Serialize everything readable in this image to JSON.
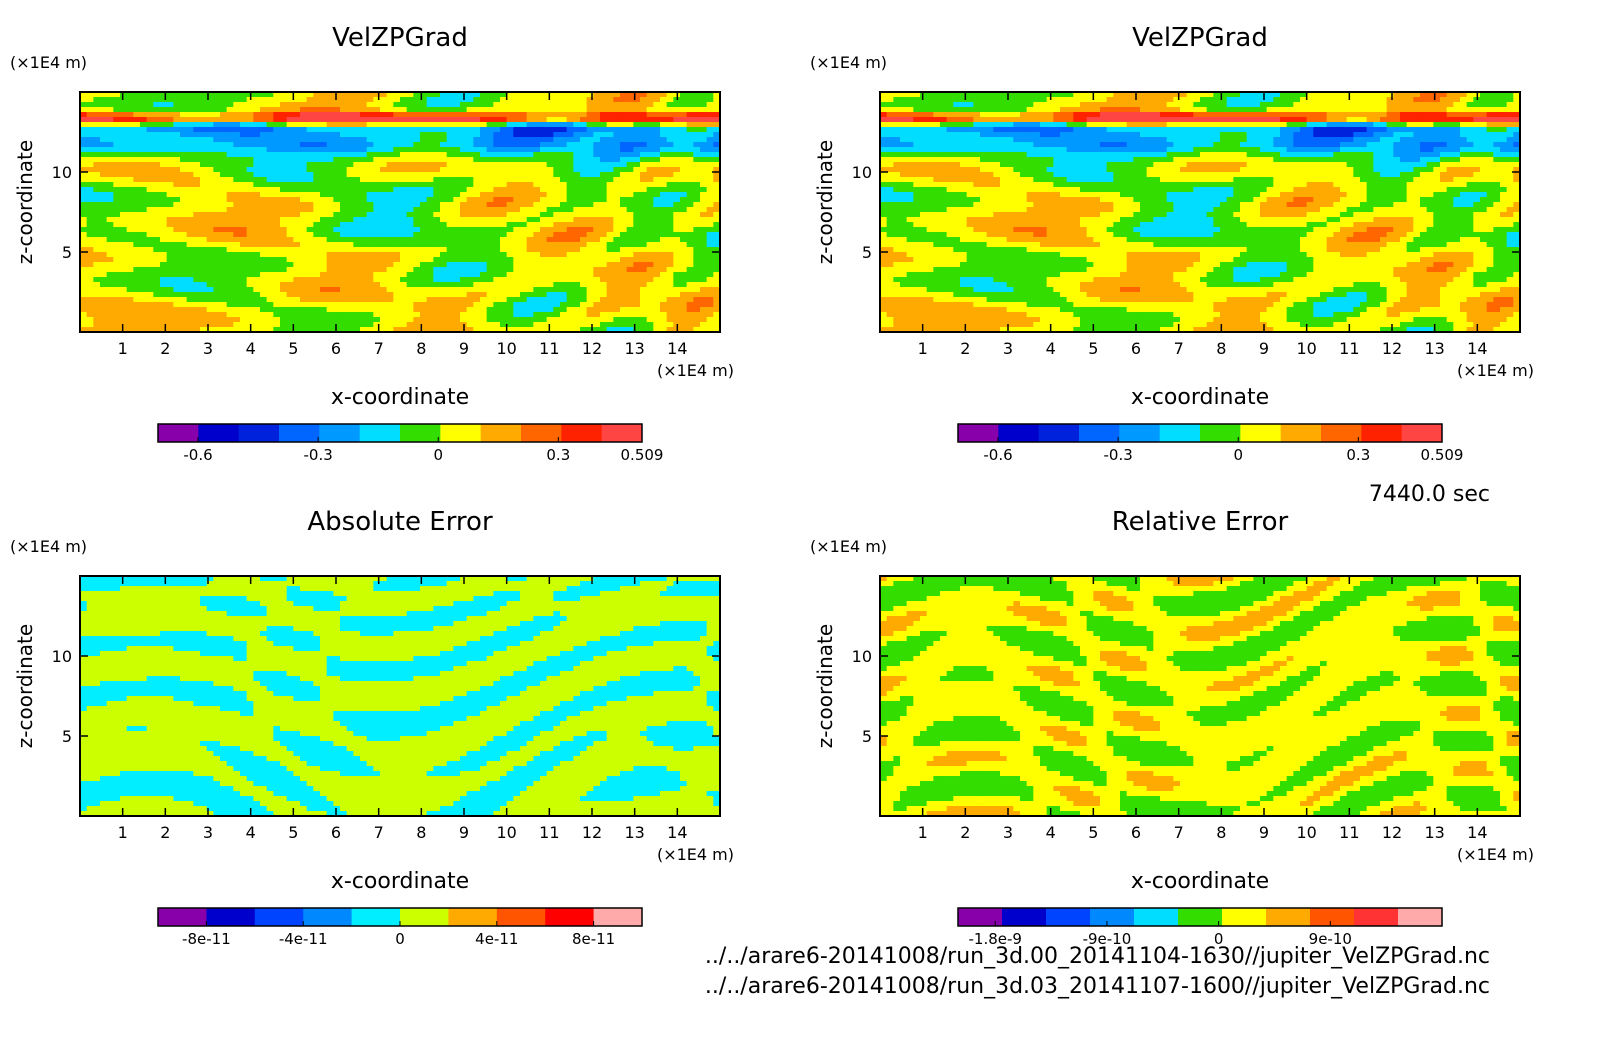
{
  "time_label": "7440.0 sec",
  "file_paths": [
    "../../arare6-20141008/run_3d.00_20141104-1630//jupiter_VelZPGrad.nc",
    "../../arare6-20141008/run_3d.03_20141107-1600//jupiter_VelZPGrad.nc"
  ],
  "chart_data": [
    {
      "type": "heatmap",
      "title": "VelZPGrad",
      "xlabel": "x-coordinate",
      "ylabel": "z-coordinate",
      "x_unit": "(×1E4 m)",
      "y_unit": "(×1E4 m)",
      "xlim": [
        0,
        15
      ],
      "ylim": [
        0,
        15
      ],
      "x_ticks": [
        1,
        2,
        3,
        4,
        5,
        6,
        7,
        8,
        9,
        10,
        11,
        12,
        13,
        14
      ],
      "y_ticks": [
        5,
        10
      ],
      "pattern": "velzp",
      "colorbar": {
        "colors": [
          "#8800aa",
          "#0000cc",
          "#0022dd",
          "#0066ff",
          "#0099ff",
          "#00ddff",
          "#33dd00",
          "#ffff00",
          "#ffaa00",
          "#ff6600",
          "#ff2200",
          "#ff4444"
        ],
        "tick_labels": [
          "-0.6",
          "-0.3",
          "0",
          "0.3",
          "0.509"
        ],
        "tick_values": [
          -0.6,
          -0.3,
          0,
          0.3,
          0.509
        ],
        "range": [
          -0.7,
          0.509
        ]
      }
    },
    {
      "type": "heatmap",
      "title": "VelZPGrad",
      "xlabel": "x-coordinate",
      "ylabel": "z-coordinate",
      "x_unit": "(×1E4 m)",
      "y_unit": "(×1E4 m)",
      "xlim": [
        0,
        15
      ],
      "ylim": [
        0,
        15
      ],
      "x_ticks": [
        1,
        2,
        3,
        4,
        5,
        6,
        7,
        8,
        9,
        10,
        11,
        12,
        13,
        14
      ],
      "y_ticks": [
        5,
        10
      ],
      "pattern": "velzp",
      "colorbar": {
        "colors": [
          "#8800aa",
          "#0000cc",
          "#0022dd",
          "#0066ff",
          "#0099ff",
          "#00ddff",
          "#33dd00",
          "#ffff00",
          "#ffaa00",
          "#ff6600",
          "#ff2200",
          "#ff4444"
        ],
        "tick_labels": [
          "-0.6",
          "-0.3",
          "0",
          "0.3",
          "0.509"
        ],
        "tick_values": [
          -0.6,
          -0.3,
          0,
          0.3,
          0.509
        ],
        "range": [
          -0.7,
          0.509
        ]
      }
    },
    {
      "type": "heatmap",
      "title": "Absolute Error",
      "xlabel": "x-coordinate",
      "ylabel": "z-coordinate",
      "x_unit": "(×1E4 m)",
      "y_unit": "(×1E4 m)",
      "xlim": [
        0,
        15
      ],
      "ylim": [
        0,
        15
      ],
      "x_ticks": [
        1,
        2,
        3,
        4,
        5,
        6,
        7,
        8,
        9,
        10,
        11,
        12,
        13,
        14
      ],
      "y_ticks": [
        5,
        10
      ],
      "pattern": "abs",
      "colorbar": {
        "colors": [
          "#8800aa",
          "#0000cc",
          "#0044ff",
          "#0088ff",
          "#00eeff",
          "#ccff00",
          "#ffaa00",
          "#ff5500",
          "#ff0000",
          "#ffaaaa"
        ],
        "tick_labels": [
          "-8e-11",
          "-4e-11",
          "0",
          "4e-11",
          "8e-11"
        ],
        "tick_values": [
          -8e-11,
          -4e-11,
          0,
          4e-11,
          8e-11
        ],
        "range": [
          -1e-10,
          1e-10
        ]
      }
    },
    {
      "type": "heatmap",
      "title": "Relative Error",
      "xlabel": "x-coordinate",
      "ylabel": "z-coordinate",
      "x_unit": "(×1E4 m)",
      "y_unit": "(×1E4 m)",
      "xlim": [
        0,
        15
      ],
      "ylim": [
        0,
        15
      ],
      "x_ticks": [
        1,
        2,
        3,
        4,
        5,
        6,
        7,
        8,
        9,
        10,
        11,
        12,
        13,
        14
      ],
      "y_ticks": [
        5,
        10
      ],
      "pattern": "rel",
      "colorbar": {
        "colors": [
          "#8800aa",
          "#0000cc",
          "#0044ff",
          "#0088ff",
          "#00ddff",
          "#33dd00",
          "#ffff00",
          "#ffaa00",
          "#ff5500",
          "#ff3333",
          "#ffaaaa"
        ],
        "tick_labels": [
          "-1.8e-9",
          "-9e-10",
          "0",
          "9e-10"
        ],
        "tick_values": [
          -1.8e-09,
          -9e-10,
          0,
          9e-10
        ],
        "range": [
          -2.1e-09,
          1.8e-09
        ]
      }
    }
  ]
}
